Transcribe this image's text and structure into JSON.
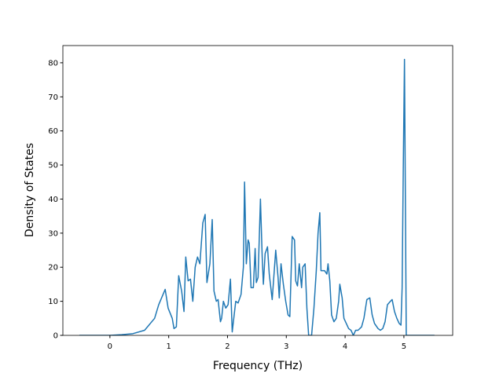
{
  "chart_data": {
    "type": "line",
    "xlabel": "Frequency (THz)",
    "ylabel": "Density of States",
    "xlim": [
      -0.8,
      5.83
    ],
    "ylim": [
      0,
      85.05
    ],
    "xticks": [
      0,
      1,
      2,
      3,
      4,
      5
    ],
    "yticks": [
      0,
      10,
      20,
      30,
      40,
      50,
      60,
      70,
      80
    ],
    "series": [
      {
        "color": "#1f77b4",
        "x": [
          -0.52,
          0,
          0.2,
          0.39,
          0.59,
          0.76,
          0.83,
          0.94,
          0.99,
          1.06,
          1.09,
          1.13,
          1.17,
          1.22,
          1.26,
          1.29,
          1.33,
          1.37,
          1.41,
          1.45,
          1.49,
          1.53,
          1.58,
          1.62,
          1.65,
          1.7,
          1.74,
          1.77,
          1.81,
          1.84,
          1.88,
          1.9,
          1.93,
          1.97,
          2.01,
          2.05,
          2.08,
          2.12,
          2.14,
          2.18,
          2.23,
          2.27,
          2.29,
          2.32,
          2.35,
          2.37,
          2.4,
          2.44,
          2.47,
          2.49,
          2.52,
          2.56,
          2.59,
          2.61,
          2.64,
          2.68,
          2.71,
          2.76,
          2.82,
          2.86,
          2.88,
          2.91,
          2.95,
          2.99,
          3.03,
          3.06,
          3.1,
          3.14,
          3.16,
          3.19,
          3.22,
          3.26,
          3.28,
          3.32,
          3.35,
          3.38,
          3.43,
          3.47,
          3.51,
          3.54,
          3.57,
          3.59,
          3.65,
          3.69,
          3.71,
          3.74,
          3.77,
          3.81,
          3.85,
          3.89,
          3.91,
          3.95,
          3.98,
          4.02,
          4.06,
          4.1,
          4.14,
          4.18,
          4.22,
          4.28,
          4.32,
          4.37,
          4.42,
          4.46,
          4.5,
          4.56,
          4.6,
          4.64,
          4.68,
          4.72,
          4.77,
          4.8,
          4.84,
          4.88,
          4.92,
          4.95,
          4.97,
          4.99,
          5.01,
          5.04,
          5.52
        ],
        "values": [
          0,
          0,
          0.2,
          0.5,
          1.5,
          5,
          9,
          13.5,
          8,
          5,
          2,
          2.5,
          17.5,
          13,
          7,
          23,
          16,
          16.5,
          10,
          20,
          23,
          21,
          33,
          35.5,
          15.5,
          21,
          34,
          13,
          10,
          10.5,
          4,
          5,
          10,
          8,
          9,
          16.5,
          1,
          7,
          10,
          9.5,
          12,
          20,
          45,
          21,
          28,
          27,
          14,
          14,
          25.5,
          15.5,
          17,
          40,
          23,
          15,
          24,
          26,
          18,
          10.5,
          25,
          17,
          11,
          21,
          15,
          10,
          6,
          5.5,
          29,
          28,
          16,
          14.5,
          21,
          14,
          20,
          21,
          8,
          0,
          0,
          8,
          19,
          30,
          36,
          19,
          19,
          18,
          21,
          16,
          6,
          4,
          5,
          10,
          15,
          11,
          5,
          3.5,
          2,
          1.5,
          0,
          1.5,
          1.5,
          2.5,
          5,
          10.5,
          11,
          6,
          3.5,
          2,
          1.5,
          2,
          4,
          9,
          10,
          10.5,
          7,
          5,
          3.5,
          3,
          14,
          50,
          81,
          0,
          0
        ]
      }
    ]
  }
}
